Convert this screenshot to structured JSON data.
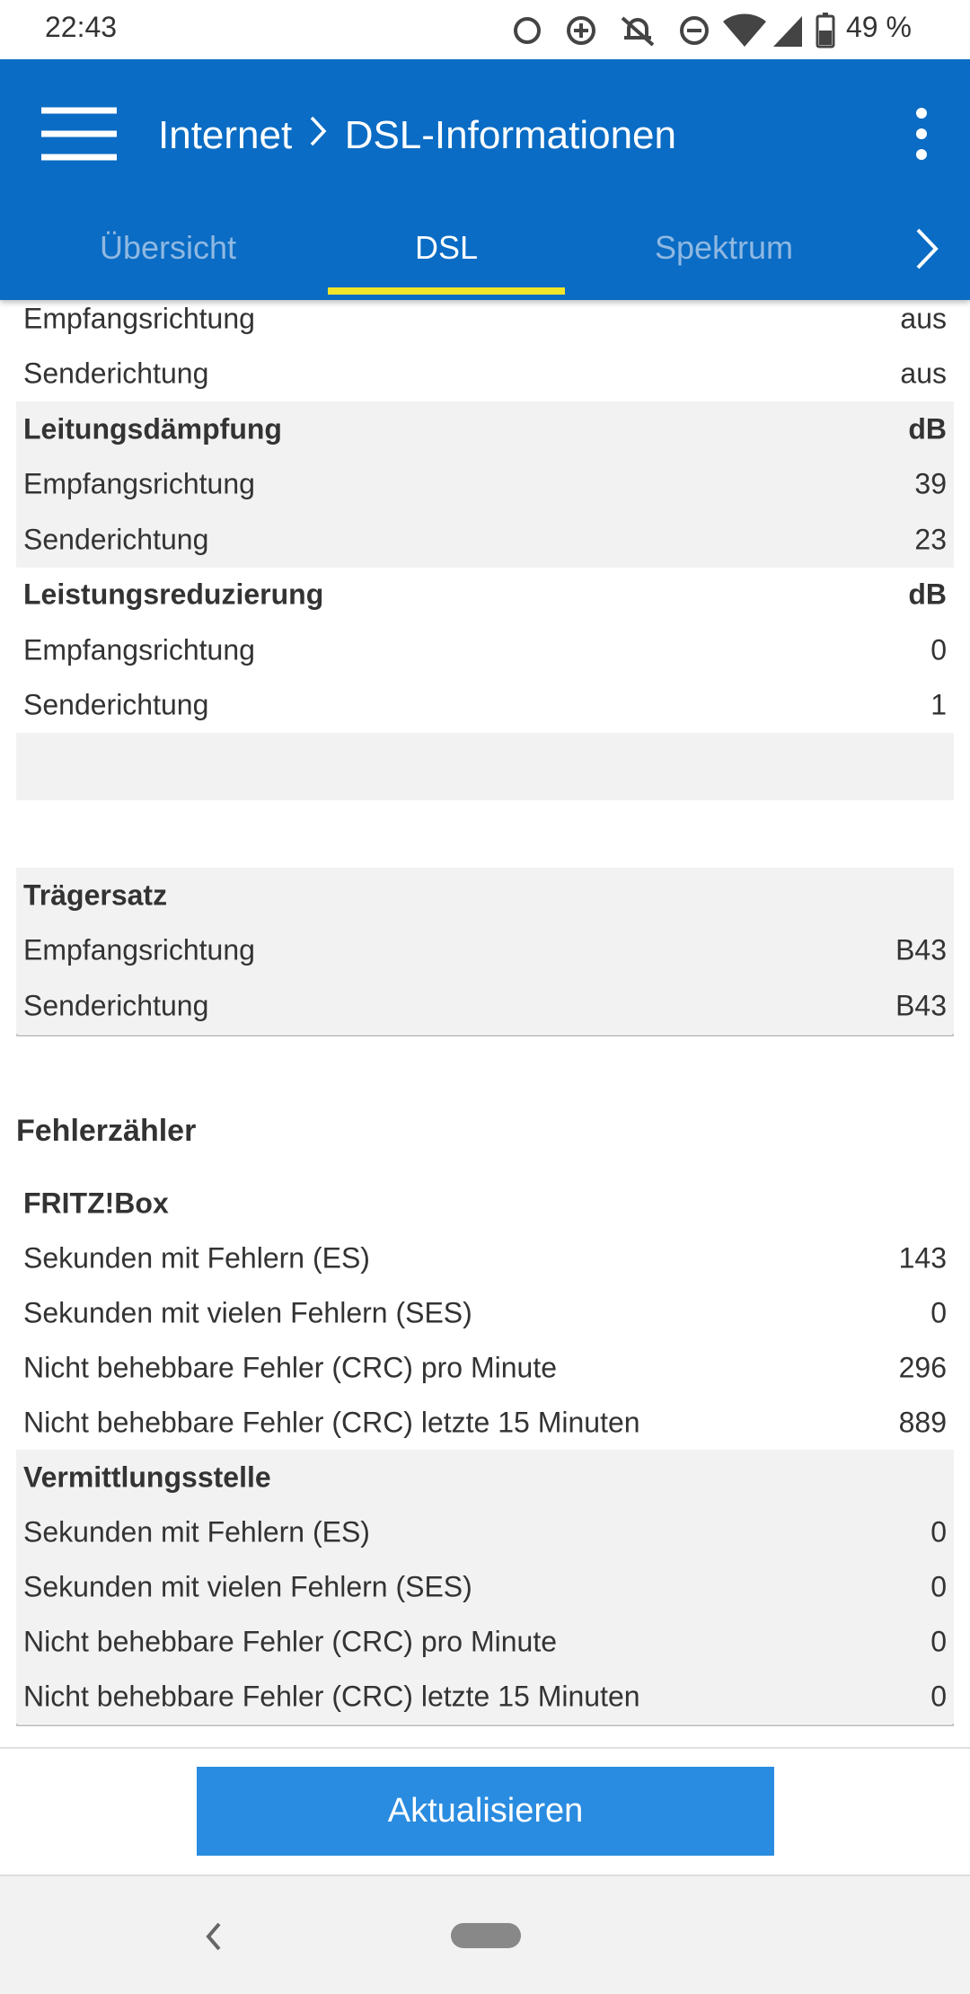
{
  "status_bar": {
    "time": "22:43",
    "battery": "49 %"
  },
  "app_bar": {
    "section": "Internet",
    "page": "DSL-Informationen"
  },
  "tabs": [
    "Übersicht",
    "DSL",
    "Spektrum"
  ],
  "dsl_table": {
    "groups": [
      {
        "rows": [
          [
            "Empfangsrichtung",
            "aus"
          ],
          [
            "Senderichtung",
            "aus"
          ]
        ]
      },
      {
        "title": "Leitungsdämpfung",
        "unit": "dB",
        "rows": [
          [
            "Empfangsrichtung",
            "39"
          ],
          [
            "Senderichtung",
            "23"
          ]
        ]
      },
      {
        "title": "Leistungsreduzierung",
        "unit": "dB",
        "rows": [
          [
            "Empfangsrichtung",
            "0"
          ],
          [
            "Senderichtung",
            "1"
          ]
        ]
      },
      {
        "title": "Trägersatz",
        "rows": [
          [
            "Empfangsrichtung",
            "B43"
          ],
          [
            "Senderichtung",
            "B43"
          ]
        ]
      }
    ]
  },
  "errors": {
    "heading": "Fehlerzähler",
    "groups": [
      {
        "title": "FRITZ!Box",
        "rows": [
          [
            "Sekunden mit Fehlern (ES)",
            "143"
          ],
          [
            "Sekunden mit vielen Fehlern (SES)",
            "0"
          ],
          [
            "Nicht behebbare Fehler (CRC) pro Minute",
            "296"
          ],
          [
            "Nicht behebbare Fehler (CRC) letzte 15 Minuten",
            "889"
          ]
        ]
      },
      {
        "title": "Vermittlungsstelle",
        "rows": [
          [
            "Sekunden mit Fehlern (ES)",
            "0"
          ],
          [
            "Sekunden mit vielen Fehlern (SES)",
            "0"
          ],
          [
            "Nicht behebbare Fehler (CRC) pro Minute",
            "0"
          ],
          [
            "Nicht behebbare Fehler (CRC) letzte 15 Minuten",
            "0"
          ]
        ]
      }
    ]
  },
  "button": "Aktualisieren"
}
